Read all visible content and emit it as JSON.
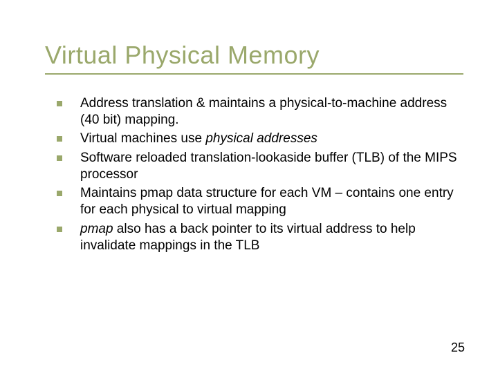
{
  "colors": {
    "title": "#9aa86b",
    "underline": "#9aa86b",
    "bullet": "#9aa86b",
    "body_text": "#000000",
    "background": "#ffffff"
  },
  "typography": {
    "title_fontsize": 36,
    "body_fontsize": 19,
    "pagenum_fontsize": 18,
    "font_family": "Verdana"
  },
  "title": "Virtual Physical Memory",
  "bullets": [
    {
      "pre": "Address translation & maintains a physical-to-machine address (40 bit) mapping.",
      "ital": "",
      "post": ""
    },
    {
      "pre": "Virtual machines use ",
      "ital": "physical addresses",
      "post": ""
    },
    {
      "pre": "Software reloaded translation-lookaside buffer (TLB) of the MIPS processor",
      "ital": "",
      "post": ""
    },
    {
      "pre": "Maintains pmap data structure for each VM – contains one entry for each physical to virtual mapping",
      "ital": "",
      "post": ""
    },
    {
      "pre": "",
      "ital": "pmap",
      "post": " also has a back pointer to its virtual address to help invalidate mappings in the TLB"
    }
  ],
  "page_number": "25"
}
